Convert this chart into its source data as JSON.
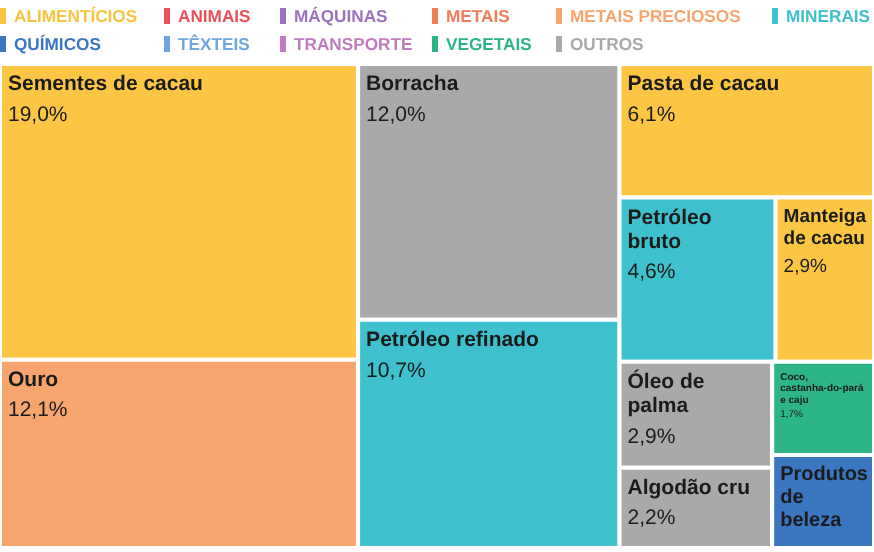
{
  "chart_data": {
    "type": "other",
    "legend": "top",
    "categories": [
      "Sementes de cacau",
      "Ouro",
      "Borracha",
      "Petróleo refinado",
      "Pasta de cacau",
      "Petróleo bruto",
      "Manteiga de cacau",
      "Óleo de palma",
      "Algodão cru",
      "Coco, castanha-do-pará e caju",
      "Produtos de beleza"
    ],
    "colors": [
      "#fcc644",
      "#f6a56e",
      "#a9a9a9",
      "#3fc0cd",
      "#fcc644",
      "#3fc0cd",
      "#fcc644",
      "#a9a9a9",
      "#a9a9a9",
      "#2db585",
      "#3b76c0"
    ],
    "series": [
      {
        "name": "ALIMENTÍCIOS",
        "color": "#f9c440",
        "values": [
          19.0,
          null,
          null,
          null,
          6.1,
          null,
          2.9,
          null,
          null,
          null,
          null
        ],
        "value_labels": [
          "19,0%",
          null,
          null,
          null,
          "6,1%",
          null,
          "2,9%",
          null,
          null,
          null,
          null
        ]
      },
      {
        "name": "ANIMAIS",
        "color": "#e8505b",
        "values": [
          null,
          null,
          null,
          null,
          null,
          null,
          null,
          null,
          null,
          null,
          null
        ]
      },
      {
        "name": "MÁQUINAS",
        "color": "#9b72bf",
        "values": [
          null,
          null,
          null,
          null,
          null,
          null,
          null,
          null,
          null,
          null,
          null
        ]
      },
      {
        "name": "METAIS",
        "color": "#f07c5a",
        "values": [
          null,
          null,
          null,
          null,
          null,
          null,
          null,
          null,
          null,
          null,
          null
        ]
      },
      {
        "name": "METAIS PRECIOSOS",
        "color": "#f6a56e",
        "values": [
          null,
          12.1,
          null,
          null,
          null,
          null,
          null,
          null,
          null,
          null,
          null
        ],
        "value_labels": [
          null,
          "12,1%",
          null,
          null,
          null,
          null,
          null,
          null,
          null,
          null,
          null
        ]
      },
      {
        "name": "MINERAIS",
        "color": "#3fc0cd",
        "values": [
          null,
          null,
          null,
          10.7,
          null,
          4.6,
          null,
          null,
          null,
          null,
          null
        ],
        "value_labels": [
          null,
          null,
          null,
          "10,7%",
          null,
          "4,6%",
          null,
          null,
          null,
          null,
          null
        ]
      },
      {
        "name": "QUÍMICOS",
        "color": "#3b76c0",
        "values": [
          null,
          null,
          null,
          null,
          null,
          null,
          null,
          null,
          null,
          null,
          null
        ]
      },
      {
        "name": "TÊXTEIS",
        "color": "#6fa6dc",
        "values": [
          null,
          null,
          null,
          null,
          null,
          null,
          null,
          null,
          null,
          null,
          null
        ]
      },
      {
        "name": "TRANSPORTE",
        "color": "#c07cbf",
        "values": [
          null,
          null,
          null,
          null,
          null,
          null,
          null,
          null,
          null,
          null,
          null
        ]
      },
      {
        "name": "VEGETAIS",
        "color": "#2db585",
        "values": [
          null,
          null,
          null,
          null,
          null,
          null,
          null,
          null,
          null,
          1.7,
          null
        ],
        "value_labels": [
          null,
          null,
          null,
          null,
          null,
          null,
          null,
          null,
          null,
          "1,7%",
          null
        ]
      },
      {
        "name": "OUTROS",
        "color": "#a9a9a9",
        "values": [
          null,
          null,
          12.0,
          null,
          null,
          null,
          null,
          2.9,
          2.2,
          null,
          null
        ],
        "value_labels": [
          null,
          null,
          "12,0%",
          null,
          null,
          null,
          null,
          "2,9%",
          "2,2%",
          null,
          null
        ]
      }
    ]
  }
}
